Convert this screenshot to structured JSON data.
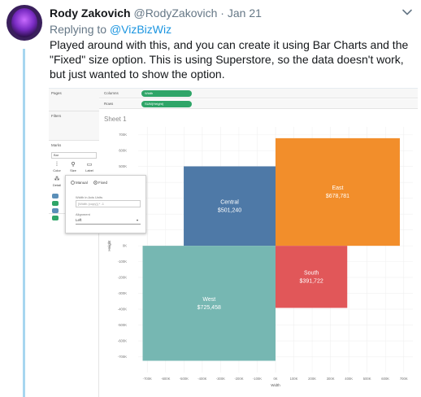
{
  "tweet": {
    "author_name": "Rody Zakovich",
    "handle": "@RodyZakovich",
    "separator": "·",
    "date": "Jan 21",
    "reply_prefix": "Replying to",
    "reply_to": "@VizBizWiz",
    "text": "Played around with this, and you can create it using Bar Charts and the \"Fixed\" size option. This is using Superstore, so the data doesn't work, but just wanted to show the option.",
    "icons": {
      "avatar": "avatar-image",
      "menu": "chevron-down-icon"
    }
  },
  "tableau": {
    "panes": {
      "pages": "Pages",
      "filters": "Filters",
      "marks": "Marks"
    },
    "mark_type": "Bar",
    "mark_buttons": {
      "color": "Color",
      "size": "Size",
      "label": "Label",
      "detail": "Detail"
    },
    "shelves": {
      "columns_label": "Columns",
      "columns_pill": "Width",
      "rows_label": "Rows",
      "rows_pill": "SUM(Height)"
    },
    "sheet_title": "Sheet 1",
    "size_popup": {
      "option_manual": "Manual",
      "option_fixed": "Fixed",
      "width_label": "Width in Axis Units",
      "width_placeholder": "[Width (copy)] * -1",
      "alignment_label": "Alignment",
      "alignment_value": "Left"
    }
  },
  "chart_data": {
    "type": "bar",
    "xlabel": "Width",
    "ylabel": "Height",
    "xlim": [
      -750000,
      750000
    ],
    "ylim": [
      -800000,
      750000
    ],
    "x_ticks": [
      "-700K",
      "-600K",
      "-500K",
      "-400K",
      "-300K",
      "-200K",
      "-100K",
      "0K",
      "100K",
      "200K",
      "300K",
      "400K",
      "500K",
      "600K",
      "700K"
    ],
    "x_tick_values": [
      -700000,
      -600000,
      -500000,
      -400000,
      -300000,
      -200000,
      -100000,
      0,
      100000,
      200000,
      300000,
      400000,
      500000,
      600000,
      700000
    ],
    "y_ticks": [
      "700K",
      "600K",
      "500K",
      "400K",
      "300K",
      "200K",
      "100K",
      "0K",
      "-100K",
      "-200K",
      "-300K",
      "-400K",
      "-500K",
      "-600K",
      "-700K"
    ],
    "y_tick_values": [
      700000,
      600000,
      500000,
      400000,
      300000,
      200000,
      100000,
      0,
      -100000,
      -200000,
      -300000,
      -400000,
      -500000,
      -600000,
      -700000
    ],
    "series": [
      {
        "name": "Central",
        "label": "Central",
        "value_label": "$501,240",
        "x": -501240,
        "width": 501240,
        "y": 0,
        "height": 501240,
        "color": "#4e79a7"
      },
      {
        "name": "East",
        "label": "East",
        "value_label": "$678,781",
        "x": 0,
        "width": 678781,
        "y": 0,
        "height": 678781,
        "color": "#f28e2b"
      },
      {
        "name": "South",
        "label": "South",
        "value_label": "$391,722",
        "x": 0,
        "width": 391722,
        "y": -391722,
        "height": 391722,
        "color": "#e15759"
      },
      {
        "name": "West",
        "label": "West",
        "value_label": "$725,458",
        "x": -725458,
        "width": 725458,
        "y": -725458,
        "height": 725458,
        "color": "#76b7b2"
      }
    ]
  }
}
